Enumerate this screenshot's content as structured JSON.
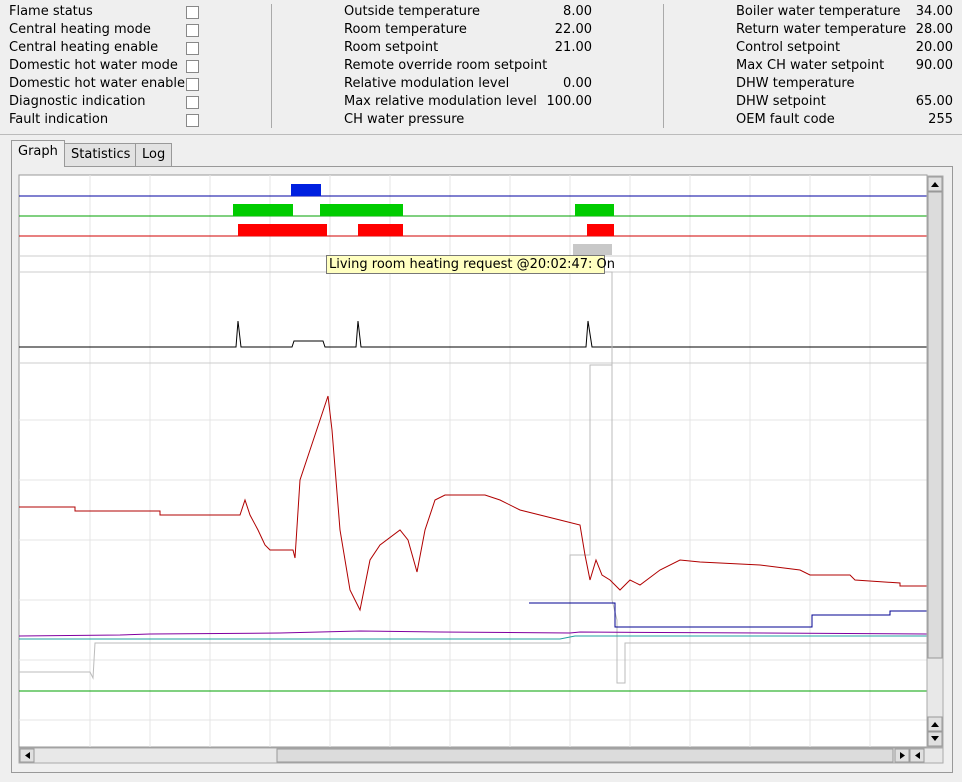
{
  "status_flags": [
    "Flame status",
    "Central heating mode",
    "Central heating enable",
    "Domestic hot water mode",
    "Domestic hot water enable",
    "Diagnostic indication",
    "Fault indication"
  ],
  "readings": [
    {
      "label": "Outside temperature",
      "value": "8.00"
    },
    {
      "label": "Room temperature",
      "value": "22.00"
    },
    {
      "label": "Room setpoint",
      "value": "21.00"
    },
    {
      "label": "Remote override room setpoint"
    },
    {
      "label": "Relative modulation level",
      "value": "0.00"
    },
    {
      "label": "Max relative modulation level",
      "value": "100.00"
    },
    {
      "label": "CH water pressure"
    }
  ],
  "boiler": [
    {
      "label": "Boiler water temperature",
      "value": "34.00"
    },
    {
      "label": "Return water temperature",
      "value": "28.00"
    },
    {
      "label": "Control setpoint",
      "value": "20.00"
    },
    {
      "label": "Max CH water setpoint",
      "value": "90.00"
    },
    {
      "label": "DHW temperature"
    },
    {
      "label": "DHW setpoint",
      "value": "65.00"
    },
    {
      "label": "OEM fault code",
      "value": "255"
    }
  ],
  "tabs": [
    "Graph",
    "Statistics",
    "Log"
  ],
  "graph": {
    "tooltip": "Living room heating request @20:02:47: On"
  }
}
